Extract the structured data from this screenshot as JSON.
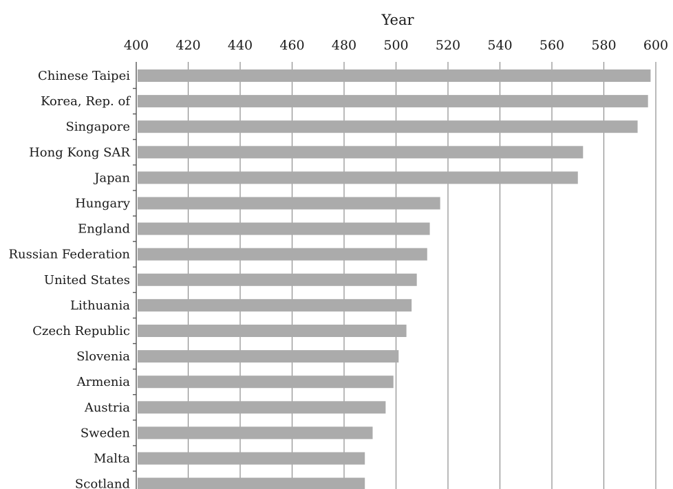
{
  "chart_data": {
    "type": "bar",
    "orientation": "horizontal",
    "title": "",
    "xlabel": "Year",
    "ylabel": "",
    "xlim": [
      400,
      600
    ],
    "x_ticks": [
      "400",
      "420",
      "440",
      "460",
      "480",
      "500",
      "520",
      "540",
      "560",
      "580",
      "600"
    ],
    "x_axis_position": "top",
    "grid": true,
    "legend": "none",
    "categories": [
      "Chinese Taipei",
      "Korea, Rep. of",
      "Singapore",
      "Hong Kong SAR",
      "Japan",
      "Hungary",
      "England",
      "Russian Federation",
      "United States",
      "Lithuania",
      "Czech Republic",
      "Slovenia",
      "Armenia",
      "Austria",
      "Sweden",
      "Malta",
      "Scotland"
    ],
    "values": [
      598,
      597,
      593,
      572,
      570,
      517,
      513,
      512,
      508,
      506,
      504,
      501,
      499,
      496,
      491,
      488,
      488
    ],
    "bar_color": "#ababab"
  }
}
